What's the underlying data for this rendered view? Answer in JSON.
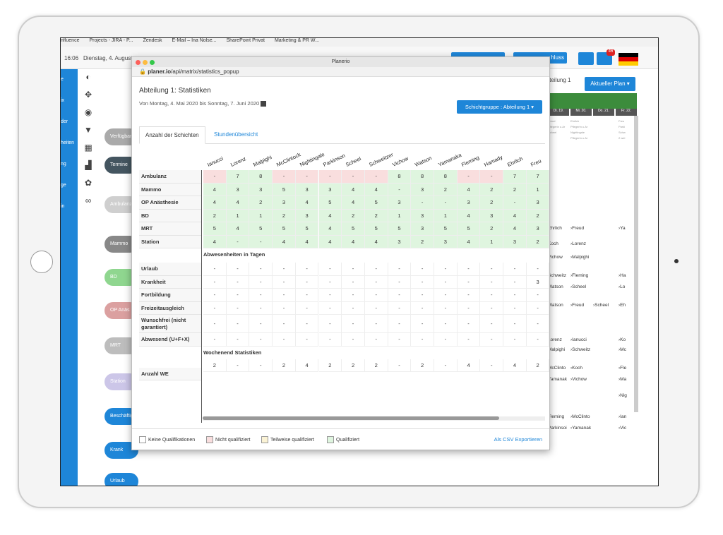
{
  "bookmarks": [
    "nfluence",
    "Projects - JIRA - P...",
    "Zendesk",
    "E-Mail – Ina Nolse...",
    "SharePoint Privat",
    "Marketing & PR W..."
  ],
  "topbar": {
    "time": "16:06",
    "date": "Dienstag, 4. August",
    "btn_hint": "hluss",
    "badge": "46"
  },
  "sidebar": [
    "e",
    "ix",
    "der",
    "heiten",
    "ng",
    "ge",
    "in"
  ],
  "pills": [
    {
      "label": "Verfügbar",
      "color": "#aaa"
    },
    {
      "label": "Termine",
      "color": "#445560"
    },
    {
      "label": "Ambulanz",
      "color": "#cfcfcf"
    },
    {
      "label": "Mammo",
      "color": "#888"
    },
    {
      "label": "BD",
      "color": "#8fd68f"
    },
    {
      "label": "OP Anäs",
      "color": "#dba0a0"
    },
    {
      "label": "MRT",
      "color": "#bdbdbd"
    },
    {
      "label": "Station",
      "color": "#ccc6e8"
    },
    {
      "label": "Beschäftigun",
      "color": "#1e86d8"
    },
    {
      "label": "Krank",
      "color": "#1e86d8"
    },
    {
      "label": "Urlaub",
      "color": "#1e86d8"
    }
  ],
  "right": {
    "header": "tteilung 1",
    "plan_button": "Aktueller Plan ▾",
    "days": [
      "Di. 19.",
      "Mi. 20.",
      "Do. 21.",
      "Fr. 22."
    ],
    "col1": [
      "Ehrlich",
      "Koch",
      "Vichow",
      "Schweitz",
      "Watson",
      "Watson",
      "Lorenz",
      "Malpighi",
      "McClinto",
      "Yamanak",
      "Fleming",
      "Parkinsoi"
    ],
    "col2": [
      "›Freud",
      "›Lorenz",
      "›Malpighi",
      "›Fleming",
      "›Scheel",
      "›Freud",
      "›Ianucci",
      "›Schweitz",
      "›Koch",
      "›Vichow",
      "›McClinto",
      "›Yamanak"
    ],
    "col4": [
      "›Ya",
      "›Ha",
      "›Lo",
      "›Eh",
      "›Ko",
      "›Mc",
      "›Fle",
      "›Ma",
      "›Nig",
      "›Ian",
      "›Vic"
    ],
    "col3": [
      "›Scheel"
    ],
    "top_col2": [
      "Ehrlich",
      "Pflegerin u.Ar",
      "Nightingale",
      "Pflegerin u.Ar"
    ],
    "top_col1": [
      "Freud",
      "Pflegerin u.Ar",
      "Scheel"
    ],
    "top_col4": [
      "Freu",
      "Parki",
      "Schw",
      "2 wei"
    ]
  },
  "popup": {
    "window_title": "Planerio",
    "url_host": "planer.io",
    "url_path": "/api/matrix/statistics_popup",
    "title": "Abteilung 1: Statistiken",
    "subtitle": "Von Montag, 4. Mai 2020 bis Sonntag, 7. Juni 2020",
    "group_button": "Schichtgruppe : Abteilung 1 ▾",
    "tabs": [
      "Anzahl der Schichten",
      "Stundenübersicht"
    ],
    "columns": [
      "Ianucci",
      "Lorenz",
      "Malpighi",
      "McClintock",
      "Nightingale",
      "Parkinson",
      "Scheel",
      "Schweitzer",
      "Vichow",
      "Watson",
      "Yamanaka",
      "Fleming",
      "Hamady",
      "Ehrlich",
      "Freu"
    ],
    "shift_rows": [
      {
        "label": "Ambulanz",
        "values": [
          "-",
          "7",
          "8",
          "-",
          "-",
          "-",
          "-",
          "-",
          "8",
          "8",
          "8",
          "-",
          "-",
          "7",
          "7"
        ],
        "status": [
          "r",
          "g",
          "g",
          "r",
          "r",
          "r",
          "r",
          "r",
          "g",
          "g",
          "g",
          "r",
          "r",
          "g",
          "g"
        ]
      },
      {
        "label": "Mammo",
        "values": [
          "4",
          "3",
          "3",
          "5",
          "3",
          "3",
          "4",
          "4",
          "-",
          "3",
          "2",
          "4",
          "2",
          "2",
          "1"
        ],
        "status": [
          "g",
          "g",
          "g",
          "g",
          "g",
          "g",
          "g",
          "g",
          "g",
          "g",
          "g",
          "g",
          "g",
          "g",
          "g"
        ]
      },
      {
        "label": "OP Anästhesie",
        "values": [
          "4",
          "4",
          "2",
          "3",
          "4",
          "5",
          "4",
          "5",
          "3",
          "-",
          "-",
          "3",
          "2",
          "-",
          "3"
        ],
        "status": [
          "g",
          "g",
          "g",
          "g",
          "g",
          "g",
          "g",
          "g",
          "g",
          "g",
          "g",
          "g",
          "g",
          "g",
          "g"
        ]
      },
      {
        "label": "BD",
        "values": [
          "2",
          "1",
          "1",
          "2",
          "3",
          "4",
          "2",
          "2",
          "1",
          "3",
          "1",
          "4",
          "3",
          "4",
          "2"
        ],
        "status": [
          "g",
          "g",
          "g",
          "g",
          "g",
          "g",
          "g",
          "g",
          "g",
          "g",
          "g",
          "g",
          "g",
          "g",
          "g"
        ]
      },
      {
        "label": "MRT",
        "values": [
          "5",
          "4",
          "5",
          "5",
          "5",
          "4",
          "5",
          "5",
          "5",
          "3",
          "5",
          "5",
          "2",
          "4",
          "3"
        ],
        "status": [
          "g",
          "g",
          "g",
          "g",
          "g",
          "g",
          "g",
          "g",
          "g",
          "g",
          "g",
          "g",
          "g",
          "g",
          "g"
        ]
      },
      {
        "label": "Station",
        "values": [
          "4",
          "-",
          "-",
          "4",
          "4",
          "4",
          "4",
          "4",
          "3",
          "2",
          "3",
          "4",
          "1",
          "3",
          "2"
        ],
        "status": [
          "g",
          "g",
          "g",
          "g",
          "g",
          "g",
          "g",
          "g",
          "g",
          "g",
          "g",
          "g",
          "g",
          "g",
          "g"
        ]
      }
    ],
    "absence_title": "Abwesenheiten in Tagen",
    "absence_rows": [
      {
        "label": "Urlaub",
        "values": [
          "-",
          "-",
          "-",
          "-",
          "-",
          "-",
          "-",
          "-",
          "-",
          "-",
          "-",
          "-",
          "-",
          "-",
          "-"
        ]
      },
      {
        "label": "Krankheit",
        "values": [
          "-",
          "-",
          "-",
          "-",
          "-",
          "-",
          "-",
          "-",
          "-",
          "-",
          "-",
          "-",
          "-",
          "-",
          "3"
        ]
      },
      {
        "label": "Fortbildung",
        "values": [
          "-",
          "-",
          "-",
          "-",
          "-",
          "-",
          "-",
          "-",
          "-",
          "-",
          "-",
          "-",
          "-",
          "-",
          "-"
        ]
      },
      {
        "label": "Freizeitausgleich",
        "values": [
          "-",
          "-",
          "-",
          "-",
          "-",
          "-",
          "-",
          "-",
          "-",
          "-",
          "-",
          "-",
          "-",
          "-",
          "-"
        ]
      },
      {
        "label": "Wunschfrei (nicht garantiert)",
        "values": [
          "-",
          "-",
          "-",
          "-",
          "-",
          "-",
          "-",
          "-",
          "-",
          "-",
          "-",
          "-",
          "-",
          "-",
          "-"
        ]
      },
      {
        "label": "Abwesend (U+F+X)",
        "values": [
          "-",
          "-",
          "-",
          "-",
          "-",
          "-",
          "-",
          "-",
          "-",
          "-",
          "-",
          "-",
          "-",
          "-",
          "-"
        ]
      }
    ],
    "weekend_title": "Wochenend Statistiken",
    "weekend_row": {
      "label": "Anzahl WE",
      "values": [
        "2",
        "-",
        "-",
        "2",
        "4",
        "2",
        "2",
        "2",
        "-",
        "2",
        "-",
        "4",
        "-",
        "4",
        "2"
      ]
    },
    "legend": [
      {
        "label": "Keine Qualifikationen",
        "color": "#ffffff"
      },
      {
        "label": "Nicht qualifiziert",
        "color": "#f9dede"
      },
      {
        "label": "Teilweise qualifiziert",
        "color": "#fbf3d5"
      },
      {
        "label": "Qualifiziert",
        "color": "#dff5df"
      }
    ],
    "csv_link": "Als CSV Exportieren"
  }
}
